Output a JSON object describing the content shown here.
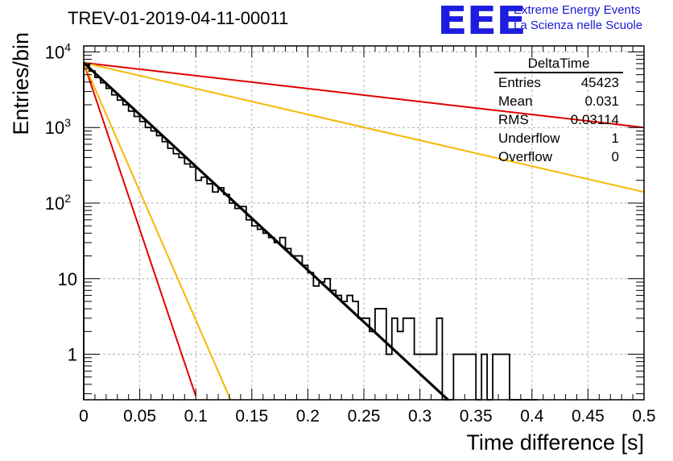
{
  "header": {
    "title": "TREV-01-2019-04-11-00011",
    "logo_mark": "EEE",
    "logo_line1": "Extreme Energy Events",
    "logo_line2": "La Scienza nelle Scuole"
  },
  "stats_box": {
    "title": "DeltaTime",
    "rows": [
      {
        "label": "Entries",
        "value": "45423"
      },
      {
        "label": "Mean",
        "value": "0.031"
      },
      {
        "label": "RMS",
        "value": "0.03114"
      },
      {
        "label": "Underflow",
        "value": "1"
      },
      {
        "label": "Overflow",
        "value": "0"
      }
    ]
  },
  "colors": {
    "histogram": "#000000",
    "fit": "#000000",
    "red_curve": "#e00000",
    "orange_curve": "#f5b800",
    "grid": "#b0b0b0"
  },
  "chart_data": {
    "type": "line",
    "title": "TREV-01-2019-04-11-00011",
    "xlabel": "Time difference [s]",
    "ylabel": "Entries/bin",
    "xlim": [
      0,
      0.5
    ],
    "ylim": [
      0.25,
      12000
    ],
    "yscale": "log",
    "grid": true,
    "x_ticks": [
      "0",
      "0.05",
      "0.1",
      "0.15",
      "0.2",
      "0.25",
      "0.3",
      "0.35",
      "0.4",
      "0.45",
      "0.5"
    ],
    "x_tick_values": [
      0,
      0.05,
      0.1,
      0.15,
      0.2,
      0.25,
      0.3,
      0.35,
      0.4,
      0.45,
      0.5
    ],
    "y_ticks": [
      {
        "value": 1,
        "base": "1",
        "exp": ""
      },
      {
        "value": 10,
        "base": "10",
        "exp": ""
      },
      {
        "value": 100,
        "base": "10",
        "exp": "2"
      },
      {
        "value": 1000,
        "base": "10",
        "exp": "3"
      },
      {
        "value": 10000,
        "base": "10",
        "exp": "4"
      }
    ],
    "histogram": {
      "bin_width": 0.005,
      "x_start": 0,
      "counts": [
        6800,
        5600,
        4600,
        3900,
        3300,
        2700,
        2300,
        2000,
        1650,
        1400,
        1200,
        1000,
        900,
        780,
        650,
        530,
        450,
        400,
        330,
        300,
        200,
        220,
        180,
        140,
        160,
        130,
        100,
        85,
        90,
        60,
        50,
        45,
        40,
        35,
        30,
        35,
        25,
        20,
        20,
        15,
        12,
        8,
        9,
        10,
        7,
        6,
        5,
        6,
        5,
        3,
        3,
        2,
        4,
        4,
        1,
        3,
        2,
        3,
        3,
        1,
        1,
        1,
        1,
        3,
        0,
        0,
        1,
        1,
        1,
        1,
        0,
        1,
        0,
        1,
        1,
        1,
        0,
        0,
        0,
        0,
        0
      ]
    },
    "series": [
      {
        "type": "line",
        "x": [
          0,
          0.325
        ],
        "y": [
          7200,
          0.25
        ]
      },
      {
        "type": "line",
        "x": [
          0,
          0.5
        ],
        "y": [
          7200,
          1000
        ]
      },
      {
        "type": "line",
        "x": [
          0,
          0.5
        ],
        "y": [
          7200,
          140
        ]
      },
      {
        "type": "line",
        "x": [
          0,
          0.1
        ],
        "y": [
          7200,
          0.28
        ]
      },
      {
        "type": "line",
        "x": [
          0,
          0.131
        ],
        "y": [
          7200,
          0.25
        ]
      }
    ]
  }
}
